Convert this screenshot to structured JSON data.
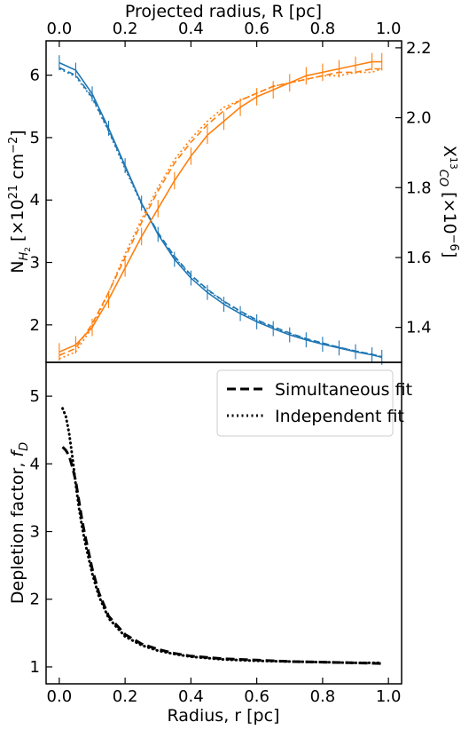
{
  "chart_data": [
    {
      "type": "line",
      "top_axis": {
        "label": "Projected radius, R [pc]",
        "xlim": [
          -0.04,
          1.04
        ],
        "ticks": [
          0.0,
          0.2,
          0.4,
          0.6,
          0.8,
          1.0
        ],
        "tick_labels": [
          "0.0",
          "0.2",
          "0.4",
          "0.6",
          "0.8",
          "1.0"
        ]
      },
      "left_axis": {
        "label_main": "N",
        "label_sub": "H",
        "label_subsub": "2",
        "label_rest": " [×10",
        "label_sup": "21",
        "label_end": " cm",
        "label_sup2": "−2",
        "label_close": "]",
        "ylim": [
          1.4,
          6.55
        ],
        "ticks": [
          2,
          3,
          4,
          5,
          6
        ],
        "tick_labels": [
          "2",
          "3",
          "4",
          "5",
          "6"
        ]
      },
      "right_axis": {
        "label_main": "X",
        "label_sup": "13",
        "label_sub": "CO",
        "label_rest": " [×10",
        "label_sup2": "−6",
        "label_close": "]",
        "ylim": [
          1.3,
          2.22
        ],
        "ticks": [
          1.4,
          1.6,
          1.8,
          2.0,
          2.2
        ],
        "tick_labels": [
          "1.4",
          "1.6",
          "1.8",
          "2.0",
          "2.2"
        ]
      },
      "colors": {
        "blue": "#1f77b4",
        "orange": "#ff7f0e"
      },
      "series": [
        {
          "axis": "left",
          "color_key": "blue",
          "style": "solid",
          "errorbars": true,
          "x": [
            0.0,
            0.05,
            0.1,
            0.15,
            0.2,
            0.25,
            0.3,
            0.35,
            0.4,
            0.45,
            0.5,
            0.55,
            0.6,
            0.65,
            0.7,
            0.75,
            0.8,
            0.85,
            0.9,
            0.95,
            0.98
          ],
          "y": [
            6.2,
            6.08,
            5.7,
            5.15,
            4.55,
            3.95,
            3.45,
            3.05,
            2.75,
            2.52,
            2.33,
            2.18,
            2.05,
            1.94,
            1.84,
            1.76,
            1.69,
            1.63,
            1.57,
            1.52,
            1.48
          ]
        },
        {
          "axis": "left",
          "color_key": "blue",
          "style": "dashed",
          "x": [
            0.0,
            0.05,
            0.1,
            0.15,
            0.2,
            0.25,
            0.3,
            0.35,
            0.4,
            0.45,
            0.5,
            0.55,
            0.6,
            0.65,
            0.7,
            0.75,
            0.8,
            0.85,
            0.9,
            0.95,
            0.98
          ],
          "y": [
            6.12,
            6.0,
            5.65,
            5.12,
            4.53,
            3.95,
            3.48,
            3.1,
            2.8,
            2.57,
            2.38,
            2.22,
            2.08,
            1.97,
            1.87,
            1.78,
            1.71,
            1.64,
            1.58,
            1.53,
            1.49
          ]
        },
        {
          "axis": "left",
          "color_key": "blue",
          "style": "dotted",
          "x": [
            0.0,
            0.05,
            0.1,
            0.15,
            0.2,
            0.25,
            0.3,
            0.35,
            0.4,
            0.45,
            0.5,
            0.55,
            0.6,
            0.65,
            0.7,
            0.75,
            0.8,
            0.85,
            0.9,
            0.95,
            0.98
          ],
          "y": [
            6.1,
            5.98,
            5.63,
            5.1,
            4.5,
            3.93,
            3.46,
            3.08,
            2.79,
            2.56,
            2.37,
            2.21,
            2.07,
            1.96,
            1.86,
            1.77,
            1.7,
            1.64,
            1.58,
            1.53,
            1.49
          ]
        },
        {
          "axis": "right",
          "color_key": "orange",
          "style": "solid",
          "errorbars": true,
          "x": [
            0.0,
            0.05,
            0.1,
            0.15,
            0.2,
            0.25,
            0.3,
            0.35,
            0.4,
            0.45,
            0.5,
            0.55,
            0.6,
            0.65,
            0.7,
            0.75,
            0.8,
            0.85,
            0.9,
            0.95,
            0.98
          ],
          "y": [
            1.33,
            1.35,
            1.4,
            1.48,
            1.57,
            1.66,
            1.74,
            1.82,
            1.89,
            1.95,
            1.99,
            2.03,
            2.06,
            2.08,
            2.1,
            2.12,
            2.13,
            2.14,
            2.15,
            2.16,
            2.16
          ]
        },
        {
          "axis": "right",
          "color_key": "orange",
          "style": "dashed",
          "x": [
            0.0,
            0.05,
            0.1,
            0.15,
            0.2,
            0.25,
            0.3,
            0.35,
            0.4,
            0.45,
            0.5,
            0.55,
            0.6,
            0.65,
            0.7,
            0.75,
            0.8,
            0.85,
            0.9,
            0.95,
            0.98
          ],
          "y": [
            1.32,
            1.34,
            1.41,
            1.5,
            1.6,
            1.7,
            1.79,
            1.87,
            1.93,
            1.98,
            2.02,
            2.05,
            2.07,
            2.09,
            2.1,
            2.11,
            2.12,
            2.13,
            2.13,
            2.14,
            2.14
          ]
        },
        {
          "axis": "right",
          "color_key": "orange",
          "style": "dotted",
          "x": [
            0.0,
            0.05,
            0.1,
            0.15,
            0.2,
            0.25,
            0.3,
            0.35,
            0.4,
            0.45,
            0.5,
            0.55,
            0.6,
            0.65,
            0.7,
            0.75,
            0.8,
            0.85,
            0.9,
            0.95,
            0.98
          ],
          "y": [
            1.31,
            1.33,
            1.4,
            1.5,
            1.61,
            1.71,
            1.8,
            1.88,
            1.94,
            1.99,
            2.03,
            2.05,
            2.07,
            2.09,
            2.1,
            2.11,
            2.12,
            2.12,
            2.13,
            2.13,
            2.14
          ]
        }
      ]
    },
    {
      "type": "line",
      "xlabel": "Radius, r [pc]",
      "xlim": [
        -0.04,
        1.04
      ],
      "x_ticks": [
        0.0,
        0.2,
        0.4,
        0.6,
        0.8,
        1.0
      ],
      "x_tick_labels": [
        "0.0",
        "0.2",
        "0.4",
        "0.6",
        "0.8",
        "1.0"
      ],
      "ylabel_main": "Depletion factor, ",
      "ylabel_italic": "f",
      "ylabel_sub": "D",
      "ylim": [
        0.75,
        5.5
      ],
      "y_ticks": [
        1,
        2,
        3,
        4,
        5
      ],
      "y_tick_labels": [
        "1",
        "2",
        "3",
        "4",
        "5"
      ],
      "legend_position": "top-right",
      "series": [
        {
          "name": "Simultaneous fit",
          "style": "dashed",
          "color": "#000000",
          "x": [
            0.01,
            0.02,
            0.03,
            0.04,
            0.05,
            0.06,
            0.07,
            0.08,
            0.1,
            0.12,
            0.15,
            0.2,
            0.25,
            0.3,
            0.35,
            0.4,
            0.5,
            0.6,
            0.7,
            0.8,
            0.9,
            0.98
          ],
          "y": [
            4.25,
            4.2,
            4.12,
            3.95,
            3.75,
            3.45,
            3.15,
            2.9,
            2.45,
            2.1,
            1.75,
            1.48,
            1.34,
            1.26,
            1.2,
            1.16,
            1.12,
            1.1,
            1.08,
            1.07,
            1.06,
            1.05
          ]
        },
        {
          "name": "Independent fit",
          "style": "dotted",
          "color": "#000000",
          "x": [
            0.01,
            0.02,
            0.03,
            0.04,
            0.05,
            0.06,
            0.07,
            0.08,
            0.1,
            0.12,
            0.15,
            0.2,
            0.25,
            0.3,
            0.35,
            0.4,
            0.5,
            0.6,
            0.7,
            0.8,
            0.9,
            0.98
          ],
          "y": [
            4.82,
            4.7,
            4.45,
            4.1,
            3.7,
            3.35,
            3.05,
            2.8,
            2.38,
            2.05,
            1.72,
            1.45,
            1.32,
            1.24,
            1.19,
            1.15,
            1.11,
            1.09,
            1.08,
            1.07,
            1.06,
            1.06
          ]
        }
      ]
    }
  ]
}
